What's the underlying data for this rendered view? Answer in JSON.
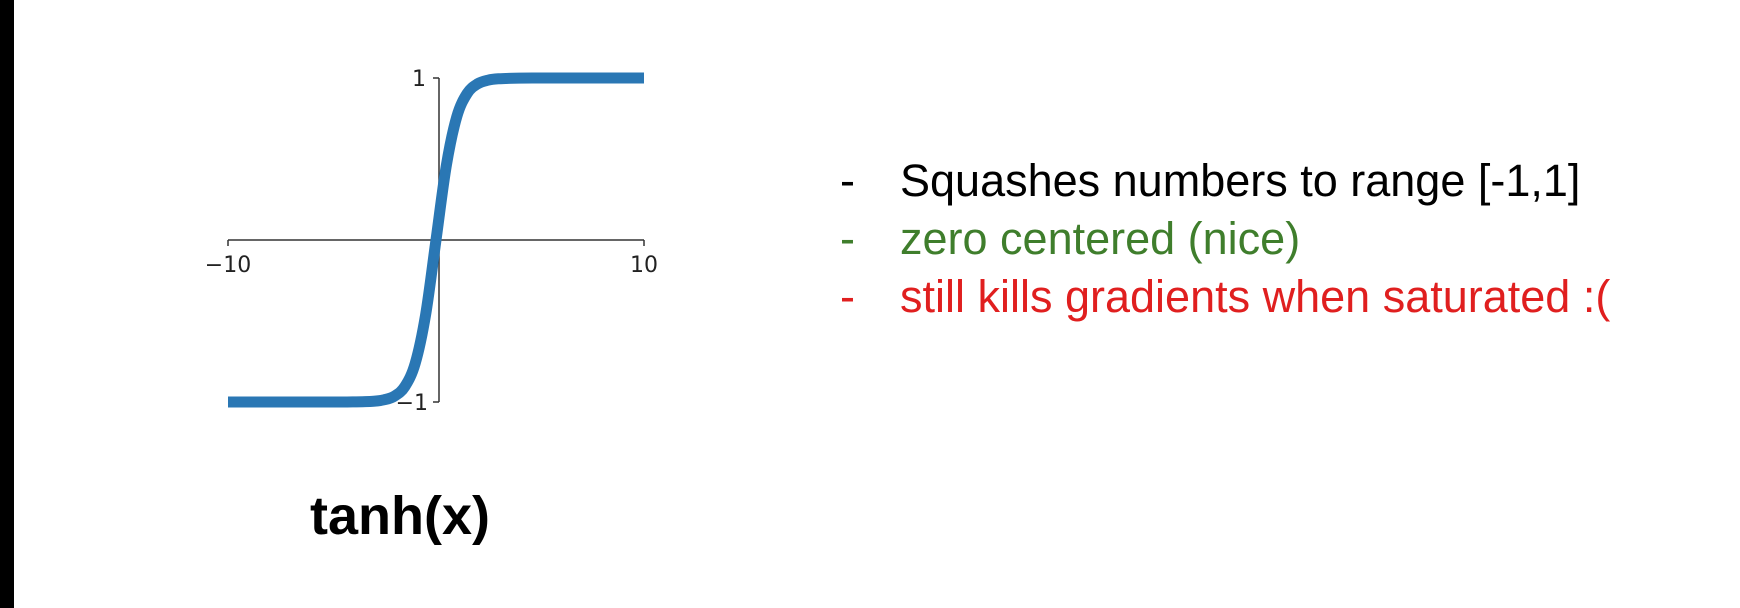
{
  "chart_data": {
    "type": "line",
    "function": "tanh",
    "x": [
      -10,
      -9,
      -8,
      -7,
      -6,
      -5,
      -4,
      -3,
      -2.5,
      -2,
      -1.5,
      -1,
      -0.5,
      0,
      0.5,
      1,
      1.5,
      2,
      2.5,
      3,
      4,
      5,
      6,
      7,
      8,
      9,
      10
    ],
    "y": [
      -1.0,
      -1.0,
      -1.0,
      -1.0,
      -1.0,
      -0.9999,
      -0.9993,
      -0.9951,
      -0.9866,
      -0.964,
      -0.9051,
      -0.7616,
      -0.4621,
      0.0,
      0.4621,
      0.7616,
      0.9051,
      0.964,
      0.9866,
      0.9951,
      0.9993,
      0.9999,
      1.0,
      1.0,
      1.0,
      1.0,
      1.0
    ],
    "xlim": [
      -10,
      10
    ],
    "ylim": [
      -1,
      1
    ],
    "x_tick_labels": [
      "−10",
      "10"
    ],
    "y_tick_labels": [
      "1",
      "−1"
    ],
    "grid": false,
    "line_color": "#2a77b4"
  },
  "title": "tanh(x)",
  "bullets": [
    {
      "dash": "-",
      "text": "Squashes numbers to range [-1,1]",
      "color": "#000000"
    },
    {
      "dash": "-",
      "text": "zero centered (nice)",
      "color": "#3f7e2c"
    },
    {
      "dash": "-",
      "text": "still kills gradients when saturated :(",
      "color": "#e01f1f"
    }
  ]
}
